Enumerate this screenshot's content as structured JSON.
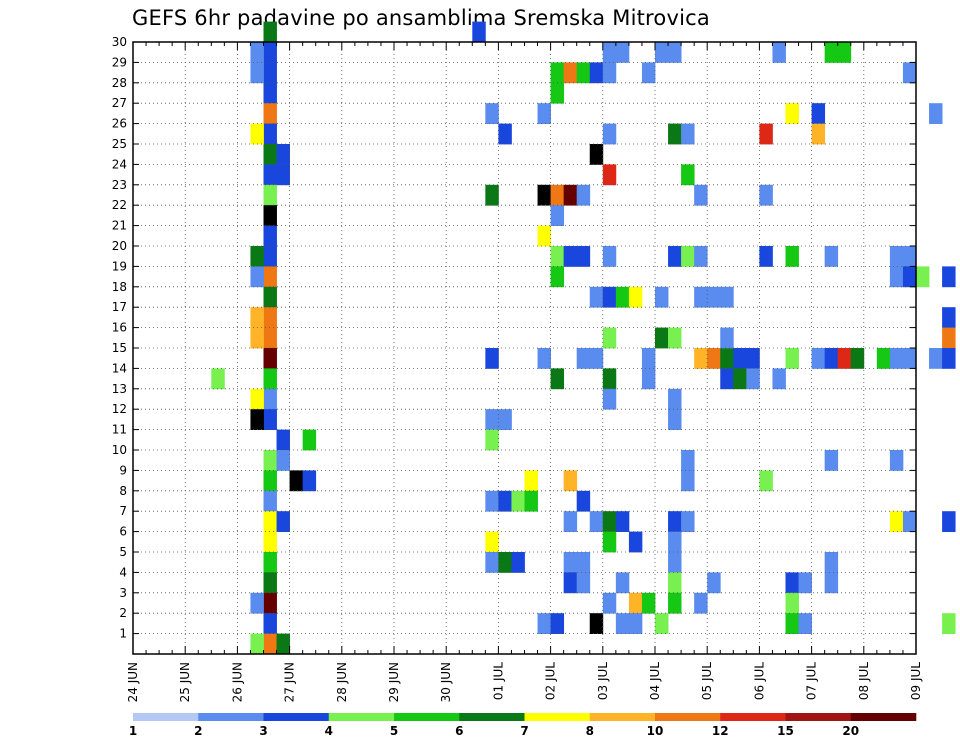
{
  "title": "GEFS 6hr padavine po ansamblima Sremska Mitrovica",
  "chart_data": {
    "type": "heatmap",
    "x_ticks": [
      "24 JUN",
      "25 JUN",
      "26 JUN",
      "27 JUN",
      "28 JUN",
      "29 JUN",
      "30 JUN",
      "01 JUL",
      "02 JUL",
      "03 JUL",
      "04 JUL",
      "05 JUL",
      "06 JUL",
      "07 JUL",
      "08 JUL",
      "09 JUL"
    ],
    "y_ticks": [
      "1",
      "2",
      "3",
      "4",
      "5",
      "6",
      "7",
      "8",
      "9",
      "10",
      "11",
      "12",
      "13",
      "14",
      "15",
      "16",
      "17",
      "18",
      "19",
      "20",
      "21",
      "22",
      "23",
      "24",
      "25",
      "26",
      "27",
      "28",
      "29",
      "30"
    ],
    "x_range": [
      "24 JUN",
      "09 JUL"
    ],
    "y_range": [
      0,
      30
    ],
    "steps_per_day": 4,
    "grid": "dotted",
    "colorbar": {
      "labels": [
        "1",
        "2",
        "3",
        "4",
        "5",
        "6",
        "7",
        "8",
        "10",
        "12",
        "15",
        "20"
      ],
      "colors": [
        "#b4c8f5",
        "#5a8cf0",
        "#1946dc",
        "#78f050",
        "#14c814",
        "#0a7814",
        "#ffff00",
        "#ffb428",
        "#f07814",
        "#dc2814",
        "#a01414",
        "#640000"
      ]
    },
    "cells": [
      [
        10,
        30,
        5
      ],
      [
        10,
        29,
        2
      ],
      [
        10,
        28,
        2
      ],
      [
        10,
        27,
        2
      ],
      [
        10,
        26,
        8
      ],
      [
        10,
        25,
        2
      ],
      [
        10,
        24,
        5
      ],
      [
        10,
        23,
        2
      ],
      [
        10,
        22,
        3
      ],
      [
        10,
        21,
        12
      ],
      [
        10,
        20,
        2
      ],
      [
        10,
        19,
        2
      ],
      [
        10,
        18,
        8
      ],
      [
        10,
        17,
        5
      ],
      [
        10,
        16,
        8
      ],
      [
        10,
        15,
        8
      ],
      [
        10,
        14,
        11
      ],
      [
        10,
        13,
        4
      ],
      [
        10,
        12,
        1
      ],
      [
        10,
        11,
        2
      ],
      [
        10,
        9,
        3
      ],
      [
        10,
        8,
        4
      ],
      [
        10,
        7,
        1
      ],
      [
        10,
        6,
        6
      ],
      [
        10,
        5,
        6
      ],
      [
        10,
        4,
        4
      ],
      [
        10,
        3,
        5
      ],
      [
        10,
        2,
        11
      ],
      [
        10,
        1,
        2
      ],
      [
        10,
        0,
        8
      ],
      [
        9,
        29,
        1
      ],
      [
        9,
        28,
        1
      ],
      [
        9,
        25,
        6
      ],
      [
        9,
        19,
        5
      ],
      [
        9,
        18,
        1
      ],
      [
        9,
        16,
        7
      ],
      [
        9,
        15,
        7
      ],
      [
        9,
        12,
        6
      ],
      [
        9,
        11,
        12
      ],
      [
        9,
        2,
        1
      ],
      [
        9,
        0,
        3
      ],
      [
        11,
        24,
        2
      ],
      [
        11,
        23,
        2
      ],
      [
        11,
        10,
        2
      ],
      [
        11,
        9,
        1
      ],
      [
        11,
        6,
        2
      ],
      [
        11,
        0,
        5
      ],
      [
        6,
        13,
        3
      ],
      [
        13,
        10,
        4
      ],
      [
        12,
        8,
        12
      ],
      [
        13,
        8,
        2
      ],
      [
        26,
        30,
        2
      ],
      [
        27,
        26,
        1
      ],
      [
        27,
        22,
        5
      ],
      [
        27,
        14,
        2
      ],
      [
        27,
        11,
        1
      ],
      [
        27,
        10,
        3
      ],
      [
        27,
        5,
        6
      ],
      [
        27,
        4,
        1
      ],
      [
        27,
        7,
        1
      ],
      [
        28,
        25,
        2
      ],
      [
        28,
        11,
        1
      ],
      [
        28,
        4,
        5
      ],
      [
        28,
        7,
        2
      ],
      [
        29,
        4,
        2
      ],
      [
        29,
        7,
        3
      ],
      [
        30,
        8,
        6
      ],
      [
        30,
        7,
        4
      ],
      [
        31,
        26,
        1
      ],
      [
        31,
        22,
        12
      ],
      [
        31,
        20,
        6
      ],
      [
        31,
        14,
        1
      ],
      [
        31,
        1,
        1
      ],
      [
        32,
        28,
        4
      ],
      [
        32,
        27,
        4
      ],
      [
        32,
        22,
        8
      ],
      [
        32,
        21,
        1
      ],
      [
        32,
        19,
        3
      ],
      [
        32,
        18,
        4
      ],
      [
        32,
        13,
        5
      ],
      [
        32,
        1,
        2
      ],
      [
        33,
        28,
        8
      ],
      [
        33,
        22,
        11
      ],
      [
        33,
        19,
        2
      ],
      [
        33,
        8,
        7
      ],
      [
        33,
        6,
        1
      ],
      [
        33,
        4,
        1
      ],
      [
        33,
        3,
        2
      ],
      [
        34,
        28,
        4
      ],
      [
        34,
        22,
        1
      ],
      [
        34,
        19,
        2
      ],
      [
        34,
        14,
        1
      ],
      [
        34,
        7,
        2
      ],
      [
        34,
        4,
        1
      ],
      [
        34,
        3,
        1
      ],
      [
        35,
        28,
        2
      ],
      [
        35,
        24,
        12
      ],
      [
        35,
        17,
        1
      ],
      [
        35,
        14,
        1
      ],
      [
        35,
        6,
        1
      ],
      [
        35,
        1,
        12
      ],
      [
        36,
        29,
        1
      ],
      [
        36,
        28,
        1
      ],
      [
        36,
        25,
        1
      ],
      [
        36,
        23,
        9
      ],
      [
        36,
        19,
        1
      ],
      [
        36,
        17,
        2
      ],
      [
        36,
        15,
        3
      ],
      [
        36,
        13,
        5
      ],
      [
        36,
        12,
        1
      ],
      [
        36,
        6,
        5
      ],
      [
        36,
        5,
        4
      ],
      [
        36,
        2,
        1
      ],
      [
        37,
        29,
        1
      ],
      [
        37,
        17,
        4
      ],
      [
        37,
        6,
        2
      ],
      [
        37,
        3,
        1
      ],
      [
        37,
        1,
        1
      ],
      [
        38,
        17,
        6
      ],
      [
        38,
        5,
        2
      ],
      [
        38,
        2,
        7
      ],
      [
        38,
        1,
        1
      ],
      [
        39,
        28,
        1
      ],
      [
        39,
        14,
        1
      ],
      [
        39,
        13,
        1
      ],
      [
        39,
        2,
        4
      ],
      [
        40,
        29,
        1
      ],
      [
        40,
        17,
        1
      ],
      [
        40,
        15,
        5
      ],
      [
        40,
        1,
        3
      ],
      [
        41,
        29,
        1
      ],
      [
        41,
        25,
        5
      ],
      [
        41,
        19,
        2
      ],
      [
        41,
        15,
        3
      ],
      [
        41,
        12,
        1
      ],
      [
        41,
        11,
        1
      ],
      [
        41,
        6,
        2
      ],
      [
        41,
        5,
        1
      ],
      [
        41,
        4,
        1
      ],
      [
        41,
        3,
        3
      ],
      [
        41,
        2,
        4
      ],
      [
        42,
        25,
        1
      ],
      [
        42,
        23,
        4
      ],
      [
        42,
        19,
        3
      ],
      [
        42,
        9,
        1
      ],
      [
        42,
        8,
        1
      ],
      [
        42,
        6,
        1
      ],
      [
        43,
        22,
        1
      ],
      [
        43,
        19,
        1
      ],
      [
        43,
        17,
        1
      ],
      [
        43,
        14,
        7
      ],
      [
        43,
        2,
        1
      ],
      [
        44,
        17,
        1
      ],
      [
        44,
        14,
        8
      ],
      [
        44,
        3,
        1
      ],
      [
        45,
        17,
        1
      ],
      [
        45,
        14,
        5
      ],
      [
        45,
        13,
        2
      ],
      [
        45,
        15,
        1
      ],
      [
        46,
        14,
        2
      ],
      [
        46,
        13,
        5
      ],
      [
        47,
        14,
        2
      ],
      [
        47,
        13,
        1
      ],
      [
        48,
        25,
        9
      ],
      [
        48,
        22,
        1
      ],
      [
        48,
        19,
        2
      ],
      [
        48,
        8,
        3
      ],
      [
        49,
        29,
        1
      ],
      [
        49,
        13,
        1
      ],
      [
        50,
        26,
        6
      ],
      [
        50,
        19,
        4
      ],
      [
        50,
        14,
        3
      ],
      [
        50,
        3,
        2
      ],
      [
        50,
        2,
        3
      ],
      [
        50,
        1,
        4
      ],
      [
        51,
        3,
        1
      ],
      [
        51,
        1,
        1
      ],
      [
        52,
        26,
        2
      ],
      [
        52,
        25,
        7
      ],
      [
        52,
        14,
        1
      ],
      [
        53,
        29,
        4
      ],
      [
        53,
        19,
        1
      ],
      [
        53,
        14,
        2
      ],
      [
        53,
        9,
        1
      ],
      [
        53,
        4,
        1
      ],
      [
        53,
        3,
        1
      ],
      [
        54,
        29,
        4
      ],
      [
        54,
        14,
        9
      ],
      [
        55,
        14,
        5
      ],
      [
        57,
        14,
        4
      ],
      [
        58,
        19,
        1
      ],
      [
        58,
        18,
        1
      ],
      [
        58,
        14,
        1
      ],
      [
        58,
        9,
        1
      ],
      [
        58,
        6,
        6
      ],
      [
        59,
        28,
        1
      ],
      [
        59,
        19,
        1
      ],
      [
        59,
        18,
        2
      ],
      [
        59,
        14,
        1
      ],
      [
        59,
        6,
        1
      ],
      [
        60,
        18,
        3
      ],
      [
        61,
        26,
        1
      ],
      [
        61,
        14,
        1
      ],
      [
        62,
        18,
        2
      ],
      [
        62,
        16,
        2
      ],
      [
        62,
        15,
        8
      ],
      [
        62,
        14,
        2
      ],
      [
        62,
        6,
        2
      ],
      [
        62,
        1,
        3
      ]
    ]
  }
}
